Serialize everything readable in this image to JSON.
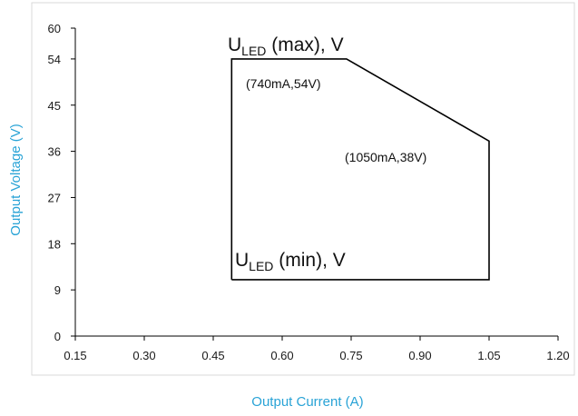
{
  "colors": {
    "axis_title": "#29a3d6",
    "frame": "#d9d9d9",
    "region": "#000000"
  },
  "chart_data": {
    "type": "line",
    "title": "",
    "xlabel": "Output Current (A)",
    "ylabel": "Output Voltage (V)",
    "xlim": [
      0.15,
      1.2
    ],
    "ylim": [
      0,
      60
    ],
    "x_ticks": [
      "0.15",
      "0.30",
      "0.45",
      "0.60",
      "0.75",
      "0.90",
      "1.05",
      "1.20"
    ],
    "y_ticks": [
      "0",
      "9",
      "18",
      "27",
      "36",
      "45",
      "54",
      "60"
    ],
    "grid": false,
    "legend": "none",
    "series": [
      {
        "points": [
          [
            0.49,
            11
          ],
          [
            0.49,
            54
          ],
          [
            0.74,
            54
          ],
          [
            1.05,
            38
          ],
          [
            1.05,
            11
          ],
          [
            0.49,
            11
          ]
        ]
      }
    ],
    "annotations": {
      "u_max_main": "U",
      "u_max_sub": "LED",
      "u_max_rest": " (max), V",
      "u_min_main": "U",
      "u_min_sub": "LED",
      "u_min_rest": " (min), V",
      "point_upper": "(740mA,54V)",
      "point_lower": "(1050mA,38V)"
    }
  }
}
